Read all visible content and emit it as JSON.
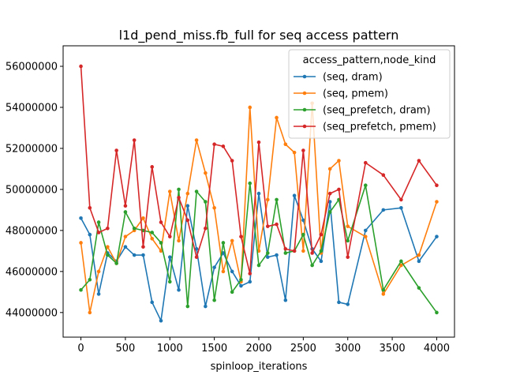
{
  "chart_data": {
    "type": "line",
    "title": "l1d_pend_miss.fb_full for seq access pattern",
    "xlabel": "spinloop_iterations",
    "ylabel": "",
    "xlim": [
      -200,
      4200
    ],
    "ylim": [
      42800000,
      57000000
    ],
    "x_ticks": [
      0,
      500,
      1000,
      1500,
      2000,
      2500,
      3000,
      3500,
      4000
    ],
    "y_ticks": [
      44000000,
      46000000,
      48000000,
      50000000,
      52000000,
      54000000,
      56000000
    ],
    "grid": false,
    "legend": {
      "title": "access_pattern,node_kind",
      "placement": "top-right"
    },
    "series": [
      {
        "name": "(seq, dram)",
        "color": "#1f77b4",
        "x": [
          0,
          100,
          200,
          300,
          400,
          500,
          600,
          700,
          800,
          900,
          1000,
          1100,
          1200,
          1300,
          1400,
          1500,
          1600,
          1700,
          1800,
          1900,
          2000,
          2100,
          2200,
          2300,
          2400,
          2500,
          2600,
          2700,
          2800,
          2900,
          3000,
          3200,
          3400,
          3600,
          3800,
          4000
        ],
        "y": [
          48600000,
          47800000,
          44900000,
          46900000,
          46500000,
          47200000,
          46800000,
          46800000,
          44500000,
          43600000,
          46700000,
          45100000,
          49200000,
          47100000,
          44300000,
          46200000,
          46900000,
          46000000,
          45300000,
          45500000,
          49800000,
          46700000,
          46800000,
          44600000,
          49700000,
          48500000,
          47100000,
          46500000,
          49400000,
          44500000,
          44400000,
          48000000,
          49000000,
          49100000,
          46500000,
          47700000
        ]
      },
      {
        "name": "(seq, pmem)",
        "color": "#ff7f0e",
        "x": [
          0,
          100,
          200,
          300,
          400,
          500,
          600,
          700,
          800,
          900,
          1000,
          1100,
          1200,
          1300,
          1400,
          1500,
          1600,
          1700,
          1800,
          1900,
          2000,
          2100,
          2200,
          2300,
          2400,
          2500,
          2600,
          2700,
          2800,
          2900,
          3000,
          3200,
          3400,
          3600,
          3800,
          4000
        ],
        "y": [
          47400000,
          44000000,
          46000000,
          47200000,
          46400000,
          47700000,
          48000000,
          48600000,
          47600000,
          47000000,
          49900000,
          47500000,
          49800000,
          52400000,
          50800000,
          49100000,
          46000000,
          47500000,
          45500000,
          54000000,
          47000000,
          49500000,
          53500000,
          52200000,
          51800000,
          47000000,
          54200000,
          46900000,
          51000000,
          51400000,
          48200000,
          47700000,
          44900000,
          46300000,
          46800000,
          49400000
        ]
      },
      {
        "name": "(seq_prefetch, dram)",
        "color": "#2ca02c",
        "x": [
          0,
          100,
          200,
          300,
          400,
          500,
          600,
          700,
          800,
          900,
          1000,
          1100,
          1200,
          1300,
          1400,
          1500,
          1600,
          1700,
          1800,
          1900,
          2000,
          2100,
          2200,
          2300,
          2400,
          2500,
          2600,
          2700,
          2800,
          2900,
          3000,
          3200,
          3400,
          3600,
          3800,
          4000
        ],
        "y": [
          45100000,
          45600000,
          48400000,
          46800000,
          46400000,
          48900000,
          48100000,
          48000000,
          47900000,
          47400000,
          45500000,
          50000000,
          44300000,
          49900000,
          49400000,
          44600000,
          47400000,
          45000000,
          45600000,
          50300000,
          46300000,
          46900000,
          49500000,
          46900000,
          47000000,
          47800000,
          46300000,
          47000000,
          48900000,
          49500000,
          47500000,
          50200000,
          45100000,
          46500000,
          45200000,
          44000000
        ]
      },
      {
        "name": "(seq_prefetch, pmem)",
        "color": "#d62728",
        "x": [
          0,
          100,
          200,
          300,
          400,
          500,
          600,
          700,
          800,
          900,
          1000,
          1100,
          1200,
          1300,
          1400,
          1500,
          1600,
          1700,
          1800,
          1900,
          2000,
          2100,
          2200,
          2300,
          2400,
          2500,
          2600,
          2700,
          2800,
          2900,
          3000,
          3200,
          3400,
          3600,
          3800,
          4000
        ],
        "y": [
          56000000,
          49100000,
          47900000,
          48100000,
          51900000,
          49200000,
          52400000,
          47200000,
          51100000,
          48400000,
          47700000,
          49600000,
          48500000,
          46700000,
          48100000,
          52200000,
          52100000,
          51400000,
          47700000,
          45900000,
          52300000,
          48200000,
          48300000,
          47100000,
          47000000,
          51900000,
          46900000,
          47800000,
          49800000,
          50000000,
          46700000,
          51300000,
          50700000,
          49500000,
          51400000,
          50200000
        ]
      }
    ]
  }
}
